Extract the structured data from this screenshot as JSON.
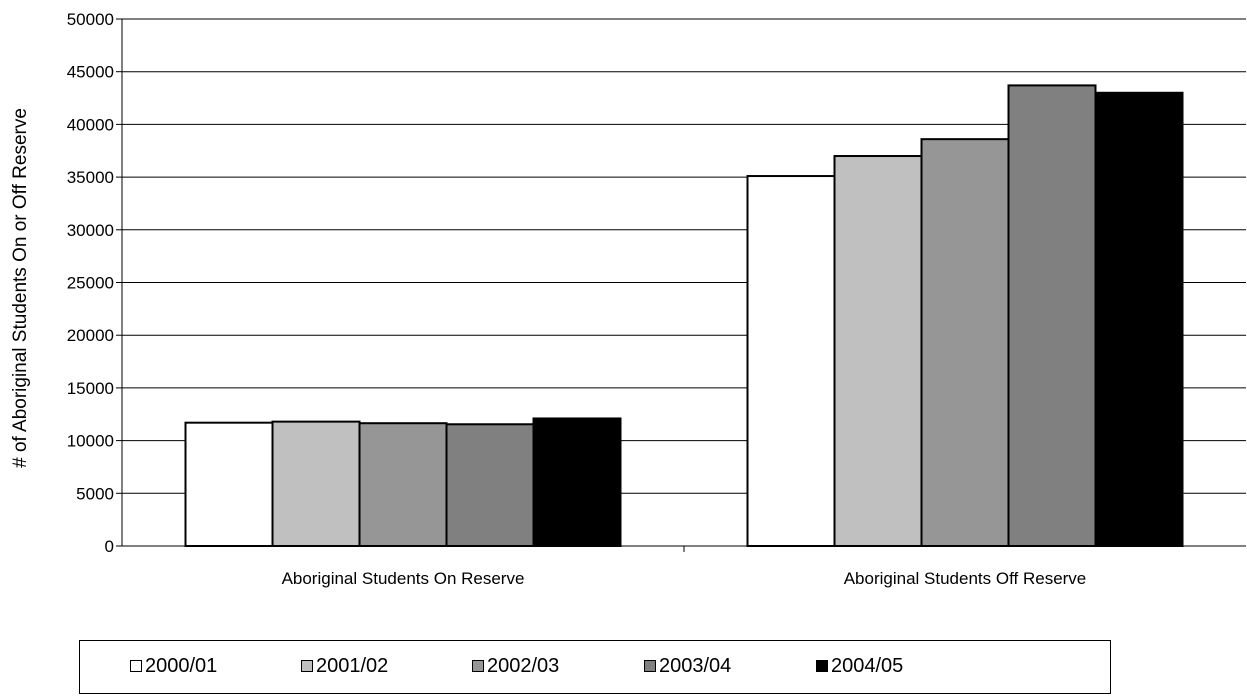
{
  "chart_data": {
    "type": "bar",
    "categories": [
      "Aboriginal Students On Reserve",
      "Aboriginal Students Off Reserve"
    ],
    "series": [
      {
        "name": "2000/01",
        "color": "#ffffff",
        "values": [
          11700,
          35100
        ]
      },
      {
        "name": "2001/02",
        "color": "#c0c0c0",
        "values": [
          11800,
          37000
        ]
      },
      {
        "name": "2002/03",
        "color": "#969696",
        "values": [
          11650,
          38600
        ]
      },
      {
        "name": "2003/04",
        "color": "#808080",
        "values": [
          11550,
          43700
        ]
      },
      {
        "name": "2004/05",
        "color": "#000000",
        "values": [
          12100,
          43000
        ]
      }
    ],
    "title": "",
    "xlabel": "",
    "ylabel": "# of Aboriginal Students On or Off Reserve",
    "ylim": [
      0,
      50000
    ],
    "yticks": [
      "0",
      "5000",
      "10000",
      "15000",
      "20000",
      "25000",
      "30000",
      "35000",
      "40000",
      "45000",
      "50000"
    ],
    "grid": true,
    "legend_position": "bottom"
  }
}
